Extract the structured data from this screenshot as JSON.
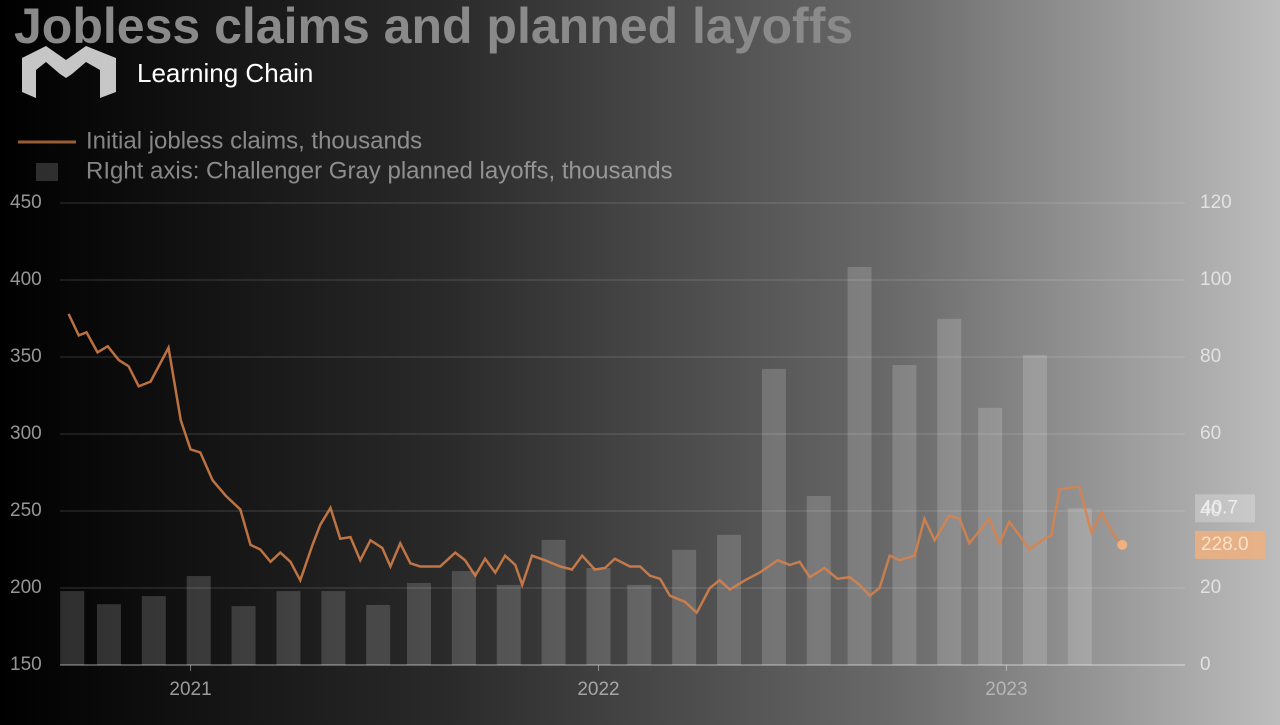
{
  "chart_data": {
    "type": "bar-line",
    "title": "Jobless claims and planned layoffs",
    "watermark": "Learning Chain",
    "xlim": [
      2020.68,
      2023.45
    ],
    "xticks": [
      2021,
      2022,
      2023
    ],
    "ylim": [
      150,
      450
    ],
    "yticks": [
      150,
      200,
      250,
      300,
      350,
      400,
      450
    ],
    "y2lim": [
      0,
      120
    ],
    "y2ticks": [
      0,
      20,
      40,
      60,
      80,
      100,
      120
    ],
    "grid": true,
    "legend": "top-left",
    "series": [
      {
        "name": "Initial jobless claims, thousands",
        "type": "line",
        "color": "#d9834a",
        "end_label": "228.0",
        "x": [
          2020.701,
          2020.726,
          2020.745,
          2020.772,
          2020.797,
          2020.824,
          2020.848,
          2020.873,
          2020.902,
          2020.946,
          2020.976,
          2021.0,
          2021.024,
          2021.054,
          2021.086,
          2021.122,
          2021.147,
          2021.171,
          2021.196,
          2021.22,
          2021.245,
          2021.269,
          2021.299,
          2021.318,
          2021.343,
          2021.367,
          2021.392,
          2021.416,
          2021.441,
          2021.47,
          2021.49,
          2021.514,
          2021.539,
          2021.563,
          2021.612,
          2021.649,
          2021.673,
          2021.698,
          2021.722,
          2021.747,
          2021.771,
          2021.796,
          2021.813,
          2021.837,
          2021.869,
          2021.906,
          2021.935,
          2021.96,
          2021.991,
          2022.016,
          2022.04,
          2022.077,
          2022.102,
          2022.126,
          2022.151,
          2022.175,
          2022.212,
          2022.241,
          2022.273,
          2022.297,
          2022.322,
          2022.359,
          2022.395,
          2022.439,
          2022.469,
          2022.493,
          2022.518,
          2022.554,
          2022.586,
          2022.616,
          2022.64,
          2022.665,
          2022.689,
          2022.714,
          2022.738,
          2022.775,
          2022.799,
          2022.824,
          2022.86,
          2022.885,
          2022.909,
          2022.958,
          2022.983,
          2023.007,
          2023.032,
          2023.056,
          2023.093,
          2023.11,
          2023.13,
          2023.179,
          2023.208,
          2023.233,
          2023.264,
          2023.284
        ],
        "values": [
          378,
          364,
          366,
          353,
          357,
          348,
          344,
          331,
          334,
          356,
          309,
          290,
          288,
          270,
          260,
          251,
          228,
          225,
          217,
          223,
          217,
          205,
          228,
          241,
          252,
          232,
          233,
          218,
          231,
          226,
          214,
          229,
          216,
          214,
          214,
          223,
          218,
          208,
          219,
          210,
          221,
          215,
          202,
          221,
          218,
          214,
          212,
          221,
          212,
          213,
          219,
          214,
          214,
          208,
          206,
          195,
          191,
          184,
          200,
          205,
          199,
          205,
          210,
          218,
          215,
          217,
          207,
          213,
          206,
          207,
          202,
          195,
          200,
          221,
          218,
          221,
          245,
          231,
          247,
          245,
          229,
          245,
          229,
          243,
          234,
          225,
          232,
          234,
          264,
          266,
          236,
          249,
          234,
          228
        ]
      },
      {
        "name": "RIght axis: Challenger Gray planned layoffs, thousands",
        "type": "bar",
        "axis": "y2",
        "color": "#ffffff",
        "end_label": "40.7",
        "x": [
          2020.71,
          2020.8,
          2020.91,
          2021.02,
          2021.13,
          2021.24,
          2021.35,
          2021.46,
          2021.56,
          2021.67,
          2021.78,
          2021.89,
          2022.0,
          2022.1,
          2022.21,
          2022.32,
          2022.43,
          2022.54,
          2022.64,
          2022.75,
          2022.86,
          2022.96,
          2023.07,
          2023.18
        ],
        "values": [
          19.2,
          15.8,
          17.9,
          23.1,
          15.3,
          19.2,
          19.2,
          15.6,
          21.3,
          24.4,
          20.8,
          32.5,
          25.2,
          20.8,
          29.9,
          33.8,
          76.9,
          43.9,
          103.4,
          77.9,
          89.9,
          66.8,
          80.5,
          40.7
        ]
      }
    ]
  }
}
